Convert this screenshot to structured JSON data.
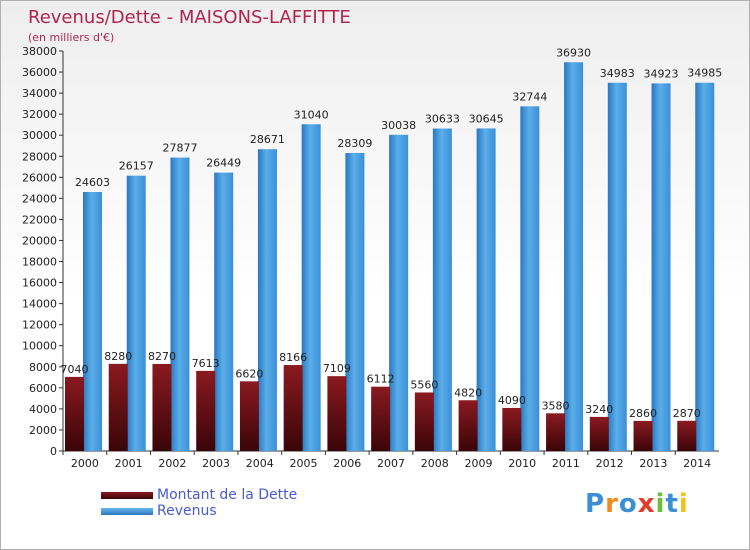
{
  "header": {
    "title": "Revenus/Dette - MAISONS-LAFFITTE",
    "subtitle": "(en milliers d'€)"
  },
  "chart_data": {
    "type": "bar",
    "title": "Revenus/Dette - MAISONS-LAFFITTE",
    "ylabel": "(en milliers d'€)",
    "xlabel": "",
    "ylim": [
      0,
      38000
    ],
    "yticks": [
      0,
      2000,
      4000,
      6000,
      8000,
      10000,
      12000,
      14000,
      16000,
      18000,
      20000,
      22000,
      24000,
      26000,
      28000,
      30000,
      32000,
      34000,
      36000,
      38000
    ],
    "categories": [
      "2000",
      "2001",
      "2002",
      "2003",
      "2004",
      "2005",
      "2006",
      "2007",
      "2008",
      "2009",
      "2010",
      "2011",
      "2012",
      "2013",
      "2014"
    ],
    "series": [
      {
        "name": "Montant de la Dette",
        "color": "#6b0e12",
        "values": [
          7040,
          8280,
          8270,
          7613,
          6620,
          8166,
          7109,
          6112,
          5560,
          4820,
          4090,
          3580,
          3240,
          2860,
          2870
        ],
        "labels": [
          "7040",
          "8280",
          "8270",
          "7613",
          "6620",
          "8166",
          "7109",
          "6112",
          "5560",
          "4820",
          "4090",
          "3580",
          "3240",
          "2860",
          "2870"
        ]
      },
      {
        "name": "Revenus",
        "color": "#3d8fd8",
        "values": [
          24603,
          26157,
          27877,
          26449,
          28671,
          31040,
          28309,
          30038,
          30633,
          30645,
          32744,
          36930,
          34983,
          34923,
          34985
        ],
        "labels": [
          "24603",
          "26157",
          "27877",
          "26449",
          "28671",
          "31040",
          "28309",
          "30038",
          "30633",
          "30645",
          "32744",
          "36930",
          "34983",
          "34923",
          "34985"
        ]
      }
    ],
    "grid": false,
    "legend_position": "bottom-left"
  },
  "legend": {
    "items": [
      {
        "label": "Montant de la Dette",
        "color": "#6b0e12"
      },
      {
        "label": "Revenus",
        "color": "#3d8fd8"
      }
    ]
  },
  "brand": {
    "letters": [
      "P",
      "r",
      "o",
      "x",
      "i",
      "t",
      "i"
    ],
    "colors": [
      "#3b8fd6",
      "#f08a1c",
      "#3b8fd6",
      "#e23b2a",
      "#6cbf3a",
      "#3b8fd6",
      "#f0c21c"
    ]
  }
}
